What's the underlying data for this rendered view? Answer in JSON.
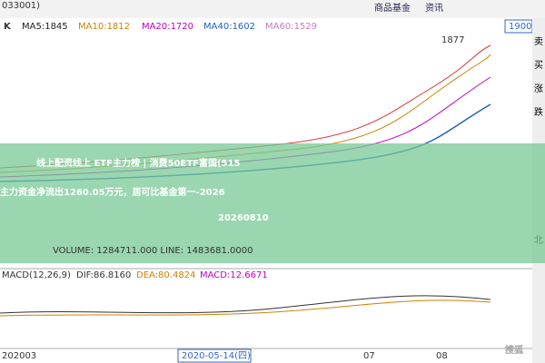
{
  "header": {
    "code": "033001)",
    "mode": "K",
    "ma": [
      "MA5:1845",
      "MA10:1812",
      "MA20:1720",
      "MA40:1602",
      "MA60:1529"
    ],
    "tabs": [
      "商品基金",
      "资讯"
    ],
    "price_box": "1900"
  },
  "price_chart": {
    "peak_label": "1877"
  },
  "side_buttons": [
    "卖",
    "买",
    "涨",
    "跌",
    "北"
  ],
  "banner": {
    "lines": [
      "线上配资线上 ETF主力榜 | 消费50ETF富国(515",
      "主力资金净流出1260.05万元，居可比基金第一-2026",
      "20260810"
    ]
  },
  "volume": {
    "label": "VOLUME: 1284711.000 LINE: 1483681.0000"
  },
  "macd": {
    "name": "MACD(12,26,9)",
    "dif": "DIF:86.8160",
    "dea": "DEA:80.4824",
    "macd": "MACD:12.6671"
  },
  "date_axis": {
    "labels": [
      "202003",
      "2020-05-14(四)",
      "07",
      "08"
    ]
  },
  "watermark": "搜狐"
}
